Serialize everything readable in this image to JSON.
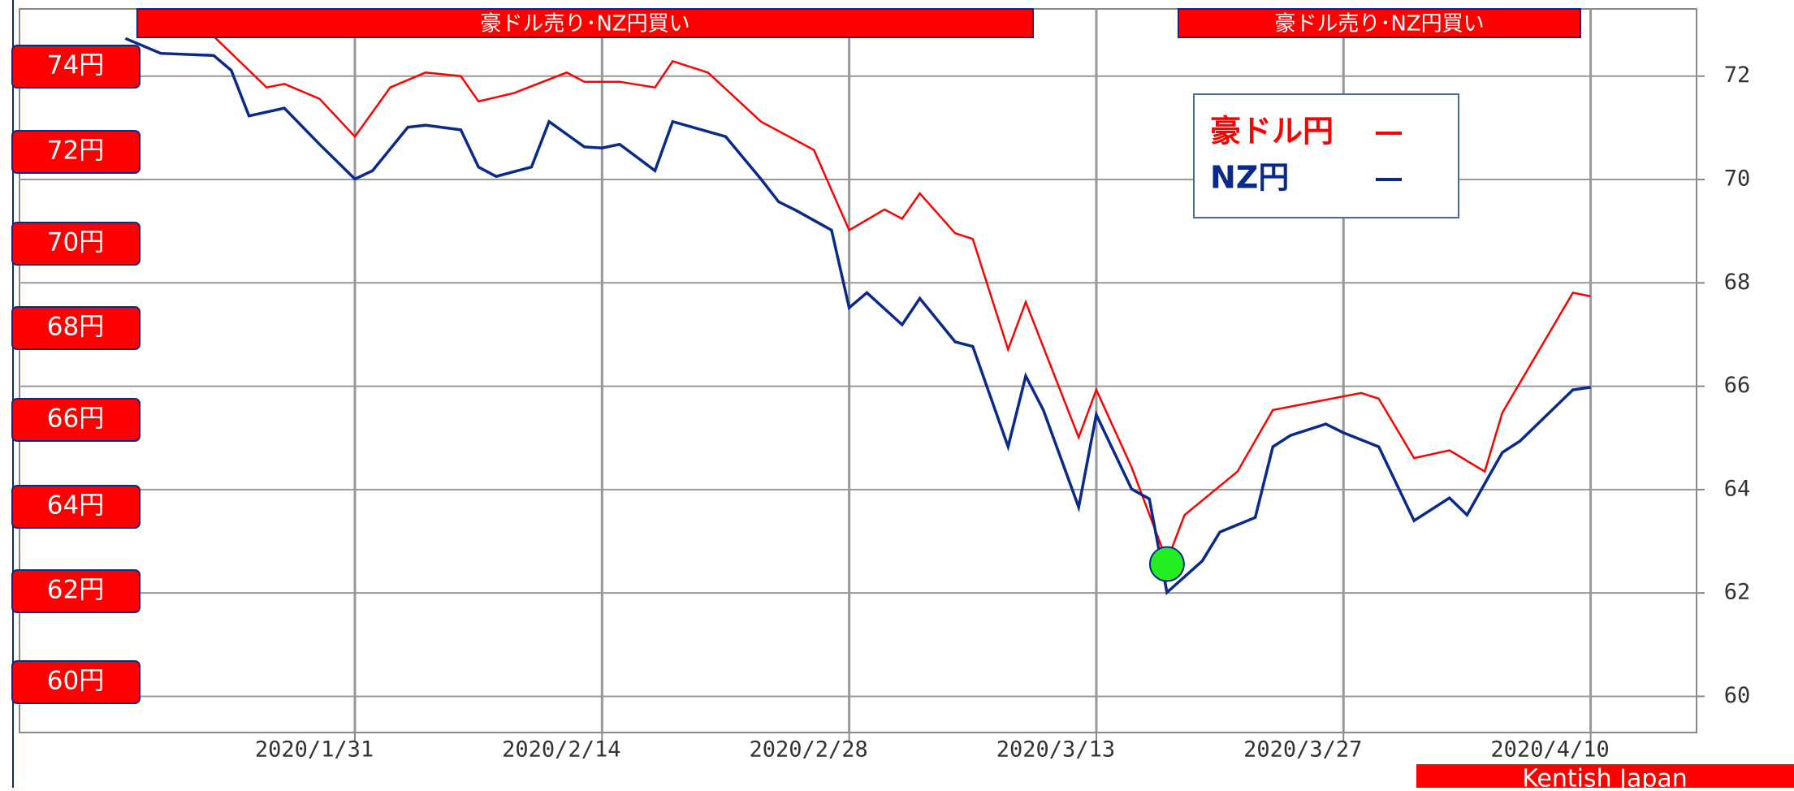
{
  "chart_data": {
    "type": "line",
    "banners": [
      "豪ドル売り･NZ円買い",
      "豪ドル売り･NZ円買い"
    ],
    "left_labels": [
      "74円",
      "72円",
      "70円",
      "68円",
      "66円",
      "64円",
      "62円",
      "60円"
    ],
    "footer": "Kentish Japan",
    "xlim": [
      "2020/1/12",
      "2020/4/16"
    ],
    "xticks": [
      "2020/1/31",
      "2020/2/14",
      "2020/2/28",
      "2020/3/13",
      "2020/3/27",
      "2020/4/10"
    ],
    "ylim": [
      59.3,
      73.3
    ],
    "yticks": [
      60,
      62,
      64,
      66,
      68,
      70,
      72
    ],
    "grid": true,
    "marker": {
      "x": "2020/3/17",
      "value": 62.56,
      "color": "#22ee22"
    },
    "series": [
      {
        "name": "豪ドル円",
        "color": "#ff0000",
        "x": [
          "2020/1/23",
          "2020/1/26",
          "2020/1/27",
          "2020/1/29",
          "2020/1/31",
          "2020/2/2",
          "2020/2/4",
          "2020/2/6",
          "2020/2/7",
          "2020/2/9",
          "2020/2/12",
          "2020/2/13",
          "2020/2/15",
          "2020/2/17",
          "2020/2/18",
          "2020/2/20",
          "2020/2/23",
          "2020/2/26",
          "2020/2/28",
          "2020/3/1",
          "2020/3/2",
          "2020/3/3",
          "2020/3/5",
          "2020/3/6",
          "2020/3/8",
          "2020/3/9",
          "2020/3/12",
          "2020/3/13",
          "2020/3/15",
          "2020/3/17",
          "2020/3/18",
          "2020/3/21",
          "2020/3/23",
          "2020/3/28",
          "2020/3/29",
          "2020/3/31",
          "2020/4/2",
          "2020/4/4",
          "2020/4/5",
          "2020/4/9",
          "2020/4/10"
        ],
        "values": [
          72.77,
          71.78,
          71.85,
          71.56,
          70.83,
          71.78,
          72.07,
          72.0,
          71.51,
          71.67,
          72.07,
          71.89,
          71.89,
          71.78,
          72.29,
          72.07,
          71.12,
          70.57,
          69.02,
          69.42,
          69.24,
          69.73,
          68.96,
          68.85,
          66.71,
          67.63,
          65.01,
          65.93,
          64.43,
          62.62,
          63.51,
          64.35,
          65.54,
          65.87,
          65.76,
          64.61,
          64.76,
          64.35,
          65.49,
          67.81,
          67.74
        ]
      },
      {
        "name": "NZ円",
        "color": "#0a2a8a",
        "x": [
          "2020/1/18",
          "2020/1/20",
          "2020/1/23",
          "2020/1/24",
          "2020/1/25",
          "2020/1/27",
          "2020/1/29",
          "2020/1/31",
          "2020/2/1",
          "2020/2/3",
          "2020/2/4",
          "2020/2/6",
          "2020/2/7",
          "2020/2/8",
          "2020/2/10",
          "2020/2/11",
          "2020/2/13",
          "2020/2/14",
          "2020/2/15",
          "2020/2/17",
          "2020/2/18",
          "2020/2/21",
          "2020/2/23",
          "2020/2/24",
          "2020/2/25",
          "2020/2/27",
          "2020/2/28",
          "2020/2/29",
          "2020/3/2",
          "2020/3/3",
          "2020/3/5",
          "2020/3/6",
          "2020/3/8",
          "2020/3/9",
          "2020/3/10",
          "2020/3/12",
          "2020/3/13",
          "2020/3/15",
          "2020/3/16",
          "2020/3/17",
          "2020/3/19",
          "2020/3/20",
          "2020/3/22",
          "2020/3/23",
          "2020/3/24",
          "2020/3/26",
          "2020/3/27",
          "2020/3/29",
          "2020/3/31",
          "2020/4/2",
          "2020/4/3",
          "2020/4/5",
          "2020/4/6",
          "2020/4/9",
          "2020/4/10"
        ],
        "values": [
          72.73,
          72.44,
          72.4,
          72.11,
          71.23,
          71.38,
          70.68,
          70.01,
          70.17,
          71.01,
          71.05,
          70.96,
          70.24,
          70.06,
          70.24,
          71.12,
          70.63,
          70.61,
          70.68,
          70.17,
          71.12,
          70.83,
          70.01,
          69.57,
          69.4,
          69.02,
          67.52,
          67.81,
          67.19,
          67.7,
          66.86,
          66.77,
          64.83,
          66.2,
          65.54,
          63.66,
          65.45,
          64.01,
          63.82,
          62.01,
          62.62,
          63.18,
          63.46,
          64.83,
          65.05,
          65.27,
          65.1,
          64.83,
          63.4,
          63.84,
          63.51,
          64.72,
          64.94,
          65.93,
          65.98
        ]
      }
    ]
  }
}
